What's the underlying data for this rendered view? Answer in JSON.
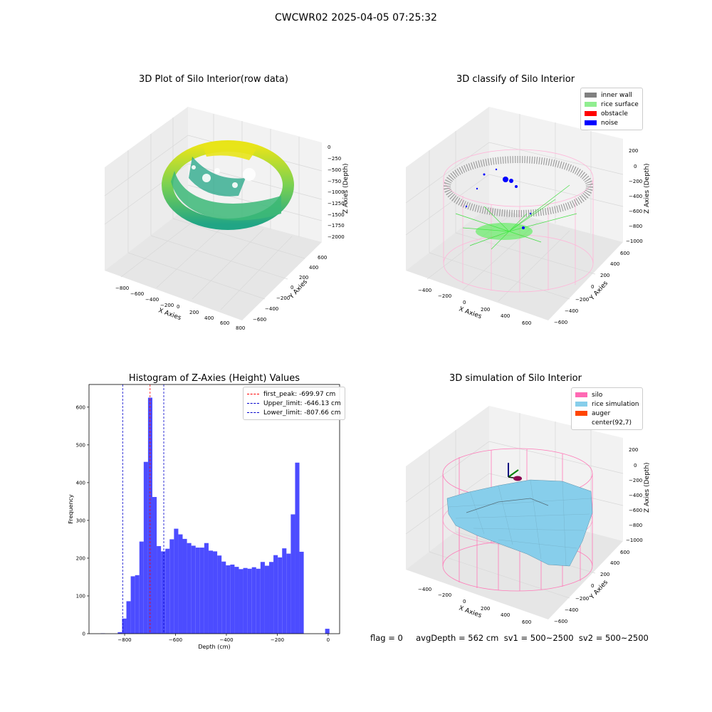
{
  "suptitle": "CWCWR02 2025-04-05 07:25:32",
  "status_line": "flag = 0     avgDepth = 562 cm  sv1 = 500~2500  sv2 = 500~2500",
  "colors": {
    "histogram_bar": "#4c4cff",
    "first_peak": "#ff0000",
    "limits": "#0000cc",
    "inner_wall": "#808080",
    "rice_surface": "#90ee90",
    "obstacle": "#ff0000",
    "noise": "#0000ff",
    "silo": "#ff69b4",
    "rice_simulation": "#87ceeb",
    "auger": "#ff4500"
  },
  "panels": {
    "raw": {
      "title": "3D Plot of Silo Interior(row data)",
      "x_label": "X Axies",
      "y_label": "Y Axies",
      "z_label": "Z Axies (Depth)",
      "x_ticks": [
        "−800",
        "−600",
        "−400",
        "−200",
        "0",
        "200",
        "400",
        "600",
        "800"
      ],
      "y_ticks": [
        "−600",
        "−400",
        "−200",
        "0",
        "200",
        "400",
        "600"
      ],
      "z_ticks": [
        "0",
        "−250",
        "−500",
        "−750",
        "−1000",
        "−1250",
        "−1500",
        "−1750",
        "−2000"
      ]
    },
    "classify": {
      "title": "3D classify of Silo Interior",
      "x_label": "X Axies",
      "y_label": "Y Axies",
      "z_label": "Z Axies (Depth)",
      "x_ticks": [
        "−400",
        "−200",
        "0",
        "200",
        "400",
        "600"
      ],
      "y_ticks": [
        "−600",
        "−400",
        "−200",
        "0",
        "200",
        "400",
        "600"
      ],
      "z_ticks": [
        "200",
        "0",
        "−200",
        "−400",
        "−600",
        "−800",
        "−1000"
      ],
      "legend": [
        "inner wall",
        "rice surface",
        "obstacle",
        "noise"
      ]
    },
    "simulation": {
      "title": "3D simulation of Silo Interior",
      "x_label": "X Axies",
      "y_label": "Y Axies",
      "z_label": "Z Axies (Depth)",
      "x_ticks": [
        "−400",
        "−200",
        "0",
        "200",
        "400",
        "600"
      ],
      "y_ticks": [
        "−600",
        "−400",
        "−200",
        "0",
        "200",
        "400",
        "600"
      ],
      "z_ticks": [
        "200",
        "0",
        "−200",
        "−400",
        "−600",
        "−800",
        "−1000"
      ],
      "legend": [
        "silo",
        "rice simulation",
        "auger",
        "center(92,7)"
      ]
    }
  },
  "chart_data": {
    "type": "bar",
    "title": "Histogram of Z-Axies (Height) Values",
    "xlabel": "Depth (cm)",
    "ylabel": "Frequency",
    "xlim": [
      -940,
      45
    ],
    "ylim": [
      0,
      660
    ],
    "x_ticks": [
      -800,
      -600,
      -400,
      -200,
      0
    ],
    "x_tick_labels": [
      "−800",
      "−600",
      "−400",
      "−200",
      "0"
    ],
    "y_ticks": [
      0,
      100,
      200,
      300,
      400,
      500,
      600
    ],
    "bin_width": 17,
    "bin_starts": [
      -894,
      -827,
      -810,
      -793,
      -776,
      -759,
      -742,
      -725,
      -708,
      -691,
      -674,
      -657,
      -640,
      -623,
      -606,
      -589,
      -572,
      -555,
      -538,
      -521,
      -504,
      -487,
      -470,
      -453,
      -436,
      -419,
      -402,
      -385,
      -368,
      -351,
      -334,
      -317,
      -300,
      -283,
      -266,
      -249,
      -232,
      -215,
      -198,
      -181,
      -164,
      -147,
      -130,
      -113,
      -96,
      -79,
      -12
    ],
    "values": [
      1,
      4,
      40,
      86,
      152,
      155,
      244,
      455,
      625,
      362,
      232,
      218,
      225,
      250,
      278,
      263,
      251,
      240,
      233,
      228,
      228,
      240,
      220,
      218,
      207,
      191,
      181,
      183,
      177,
      171,
      174,
      172,
      176,
      172,
      190,
      180,
      190,
      208,
      202,
      226,
      212,
      316,
      453,
      217,
      0,
      0,
      13
    ],
    "lines": [
      {
        "name": "first_peak: -699.97 cm",
        "x": -699.97
      },
      {
        "name": "Upper_limit: -646.13 cm",
        "x": -646.13
      },
      {
        "name": "Lower_limit: -807.66 cm",
        "x": -807.66
      }
    ],
    "legend_position": "top-right",
    "grid": false
  }
}
